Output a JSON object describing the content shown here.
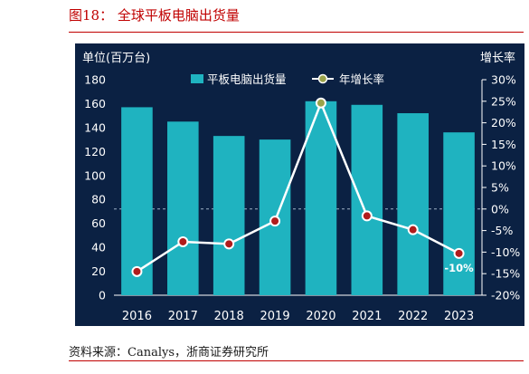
{
  "figure": {
    "title": "图18： 全球平板电脑出货量",
    "source": "资料来源：Canalys，浙商证券研究所"
  },
  "chart_data": {
    "type": "bar",
    "categories": [
      "2016",
      "2017",
      "2018",
      "2019",
      "2020",
      "2021",
      "2022",
      "2023"
    ],
    "series": [
      {
        "name": "平板电脑出货量",
        "type": "bar",
        "axis": "left",
        "color": "#1fb3c0",
        "values": [
          157,
          145,
          133,
          130,
          162,
          159,
          152,
          136
        ]
      },
      {
        "name": "年增长率",
        "type": "line",
        "axis": "right",
        "color": "#ffffff",
        "marker_color": "#9aa34a",
        "values": [
          -14.5,
          -7.6,
          -8.1,
          -2.8,
          24.6,
          -1.6,
          -4.8,
          -10.3
        ]
      }
    ],
    "ylabel_left": "单位(百万台)",
    "ylabel_right": "增长率",
    "ylim_left": [
      0,
      180
    ],
    "yticks_left": [
      "0",
      "20",
      "40",
      "60",
      "80",
      "100",
      "120",
      "140",
      "160",
      "180"
    ],
    "ylim_right": [
      -20,
      30
    ],
    "yticks_right": [
      "-20%",
      "-15%",
      "-10%",
      "-5%",
      "0%",
      "5%",
      "10%",
      "15%",
      "20%",
      "25%",
      "30%"
    ],
    "data_labels": [
      {
        "category": "2023",
        "series": "年增长率",
        "text": "-10%"
      }
    ],
    "background": "#0b2143",
    "legend_position": "top-center",
    "grid": false
  }
}
